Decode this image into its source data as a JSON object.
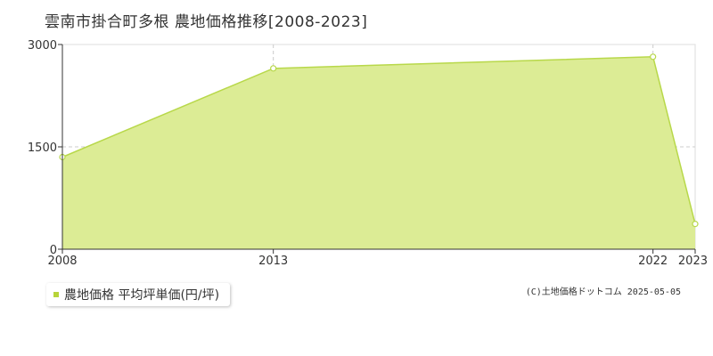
{
  "title": "雲南市掛合町多根 農地価格推移[2008-2023]",
  "chart_data": {
    "type": "area",
    "title": "雲南市掛合町多根 農地価格推移[2008-2023]",
    "x": [
      2008,
      2013,
      2022,
      2023
    ],
    "x_tick_labels": [
      "2008",
      "2013",
      "2022",
      "2023"
    ],
    "series": [
      {
        "name": "農地価格 平均坪単価(円/坪)",
        "values": [
          1350,
          2650,
          2820,
          370
        ]
      }
    ],
    "y_tick_labels": [
      "0",
      "1500",
      "3000"
    ],
    "y_ticks": [
      0,
      1500,
      3000
    ],
    "ylim": [
      0,
      3000
    ],
    "xlim": [
      2008,
      2023
    ],
    "grid": true,
    "legend_position": "bottom-left",
    "colors": {
      "fill": "#dcec95",
      "line": "#b8d84a",
      "marker_fill": "#ffffff"
    }
  },
  "legend": {
    "label": "農地価格 平均坪単価(円/坪)"
  },
  "copyright": "(C)土地価格ドットコム 2025-05-05"
}
